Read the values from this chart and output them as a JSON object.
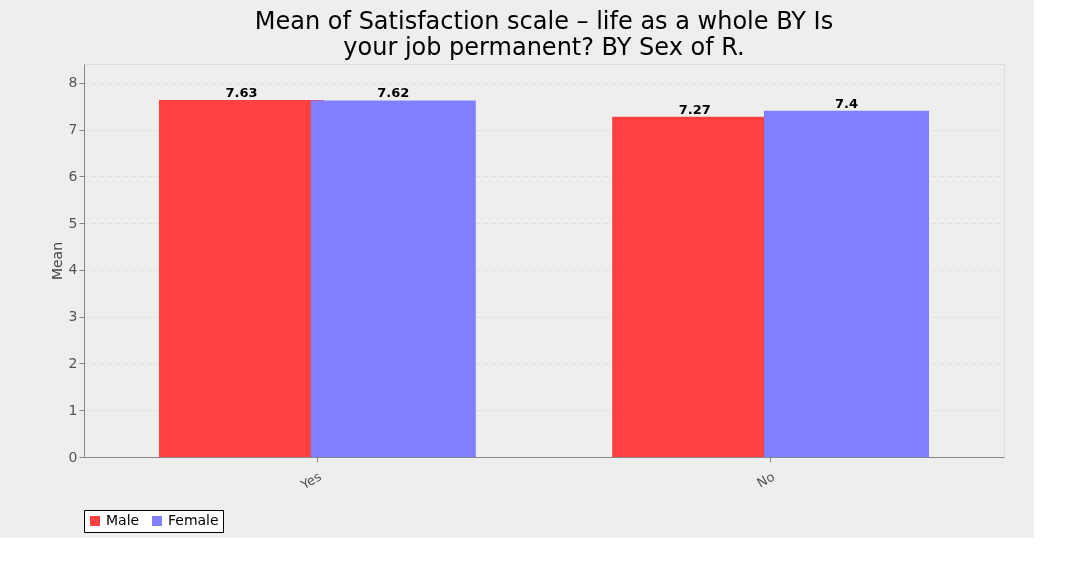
{
  "chart_data": {
    "type": "bar",
    "title": "Mean of Satisfaction scale – life as a whole BY Is your job permanent? BY Sex of R.",
    "ylabel": "Mean",
    "categories": [
      "Yes",
      "No"
    ],
    "series": [
      {
        "name": "Male",
        "color": "#ff4040",
        "values": [
          7.63,
          7.27
        ]
      },
      {
        "name": "Female",
        "color": "#8080ff",
        "values": [
          7.62,
          7.4
        ]
      }
    ],
    "ylim": [
      0,
      8.4
    ],
    "yticks": [
      0,
      1,
      2,
      3,
      4,
      5,
      6,
      7,
      8
    ],
    "grid": "y",
    "legend": "bottom",
    "data_labels": true
  }
}
